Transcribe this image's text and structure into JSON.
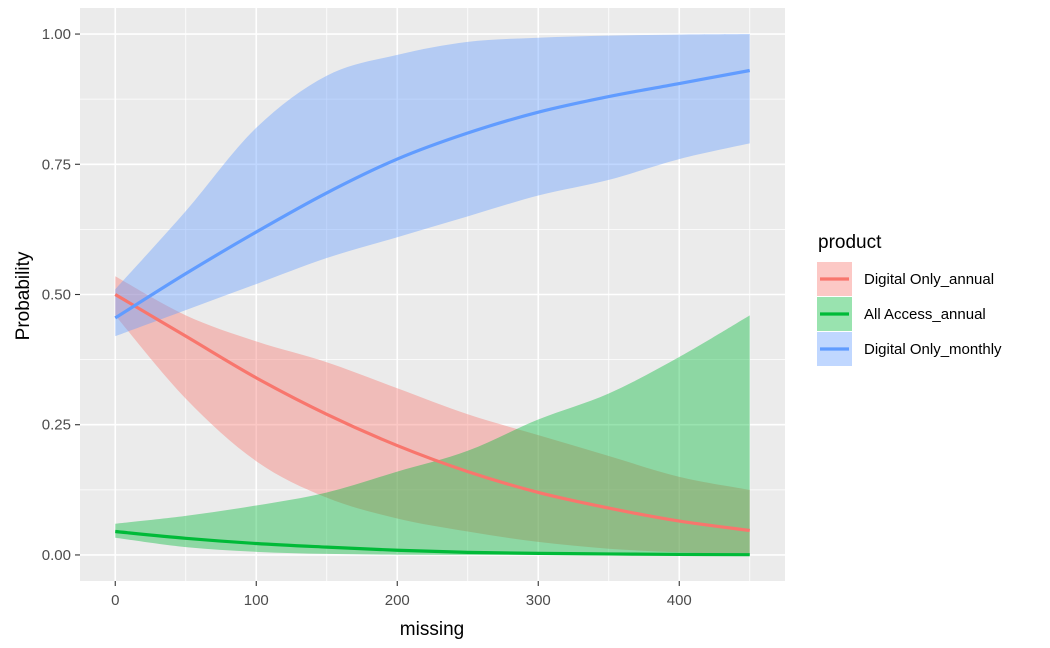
{
  "chart_data": {
    "type": "line",
    "title": "",
    "xlabel": "missing",
    "ylabel": "Probability",
    "xlim": [
      -25,
      475
    ],
    "ylim": [
      -0.05,
      1.05
    ],
    "x_ticks": [
      0,
      100,
      200,
      300,
      400
    ],
    "x_tick_labels": [
      "0",
      "100",
      "200",
      "300",
      "400"
    ],
    "y_ticks": [
      0,
      0.25,
      0.5,
      0.75,
      1.0
    ],
    "y_tick_labels": [
      "0.00",
      "0.25",
      "0.50",
      "0.75",
      "1.00"
    ],
    "grid": true,
    "background": "#ebebeb",
    "legend": {
      "title": "product",
      "position": "right"
    },
    "x": [
      0,
      50,
      100,
      150,
      200,
      250,
      300,
      350,
      400,
      450
    ],
    "series": [
      {
        "name": "Digital Only_annual",
        "color": "#F8766D",
        "values": [
          0.5,
          0.42,
          0.34,
          0.27,
          0.21,
          0.16,
          0.12,
          0.09,
          0.065,
          0.047
        ],
        "lower": [
          0.46,
          0.3,
          0.18,
          0.11,
          0.07,
          0.045,
          0.025,
          0.012,
          0.005,
          0.002
        ],
        "upper": [
          0.535,
          0.46,
          0.41,
          0.37,
          0.32,
          0.27,
          0.23,
          0.19,
          0.15,
          0.125
        ]
      },
      {
        "name": "All Access_annual",
        "color": "#00BA38",
        "values": [
          0.045,
          0.032,
          0.022,
          0.015,
          0.009,
          0.005,
          0.003,
          0.002,
          0.001,
          0.0005
        ],
        "lower": [
          0.033,
          0.015,
          0.006,
          0.002,
          0.0005,
          0.0,
          0.0,
          0.0,
          0.0,
          0.0
        ],
        "upper": [
          0.06,
          0.075,
          0.095,
          0.12,
          0.16,
          0.2,
          0.26,
          0.31,
          0.38,
          0.46
        ]
      },
      {
        "name": "Digital Only_monthly",
        "color": "#619CFF",
        "values": [
          0.455,
          0.54,
          0.62,
          0.695,
          0.76,
          0.81,
          0.85,
          0.88,
          0.905,
          0.93
        ],
        "lower": [
          0.42,
          0.47,
          0.52,
          0.57,
          0.61,
          0.65,
          0.69,
          0.72,
          0.76,
          0.79
        ],
        "upper": [
          0.51,
          0.66,
          0.82,
          0.92,
          0.96,
          0.985,
          0.993,
          0.997,
          0.999,
          1.0
        ]
      }
    ]
  }
}
